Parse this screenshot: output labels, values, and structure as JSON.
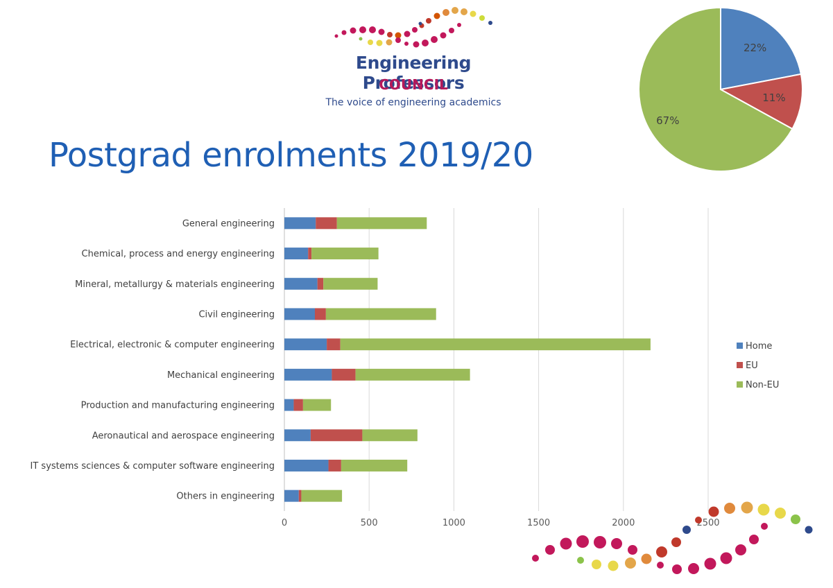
{
  "logo": {
    "line1": "Engineering Professors",
    "line2": "COUNCIL",
    "tagline": "The voice of engineering academics"
  },
  "title": "Postgrad enrolments 2019/20",
  "colors": {
    "home": "#4f81bd",
    "eu": "#c0504d",
    "non_eu": "#9bbb59",
    "title": "#1f5fb4",
    "logo_blue": "#2e4a8c",
    "logo_magenta": "#b5195a"
  },
  "chart_data": [
    {
      "type": "bar",
      "orientation": "horizontal",
      "stacked": true,
      "categories": [
        "General engineering",
        "Chemical, process and energy engineering",
        "Mineral, metallurgy & materials engineering",
        "Civil engineering",
        "Electrical, electronic & computer engineering",
        "Mechanical engineering",
        "Production and manufacturing engineering",
        "Aeronautical and aerospace engineering",
        "IT systems sciences & computer software engineering",
        "Others in engineering"
      ],
      "series": [
        {
          "name": "Home",
          "values": [
            185,
            140,
            195,
            180,
            250,
            280,
            55,
            155,
            260,
            85
          ]
        },
        {
          "name": "EU",
          "values": [
            125,
            20,
            35,
            65,
            80,
            140,
            55,
            305,
            75,
            15
          ]
        },
        {
          "name": "Non-EU",
          "values": [
            530,
            395,
            320,
            650,
            1830,
            675,
            165,
            325,
            390,
            240
          ]
        }
      ],
      "xticks": [
        "0",
        "500",
        "1000",
        "1500",
        "2000",
        "2500"
      ],
      "xlim": [
        0,
        2500
      ],
      "grid": true,
      "legend_position": "right"
    },
    {
      "type": "pie",
      "labels": [
        "22%",
        "11%",
        "67%"
      ],
      "values": [
        22,
        11,
        67
      ]
    }
  ]
}
